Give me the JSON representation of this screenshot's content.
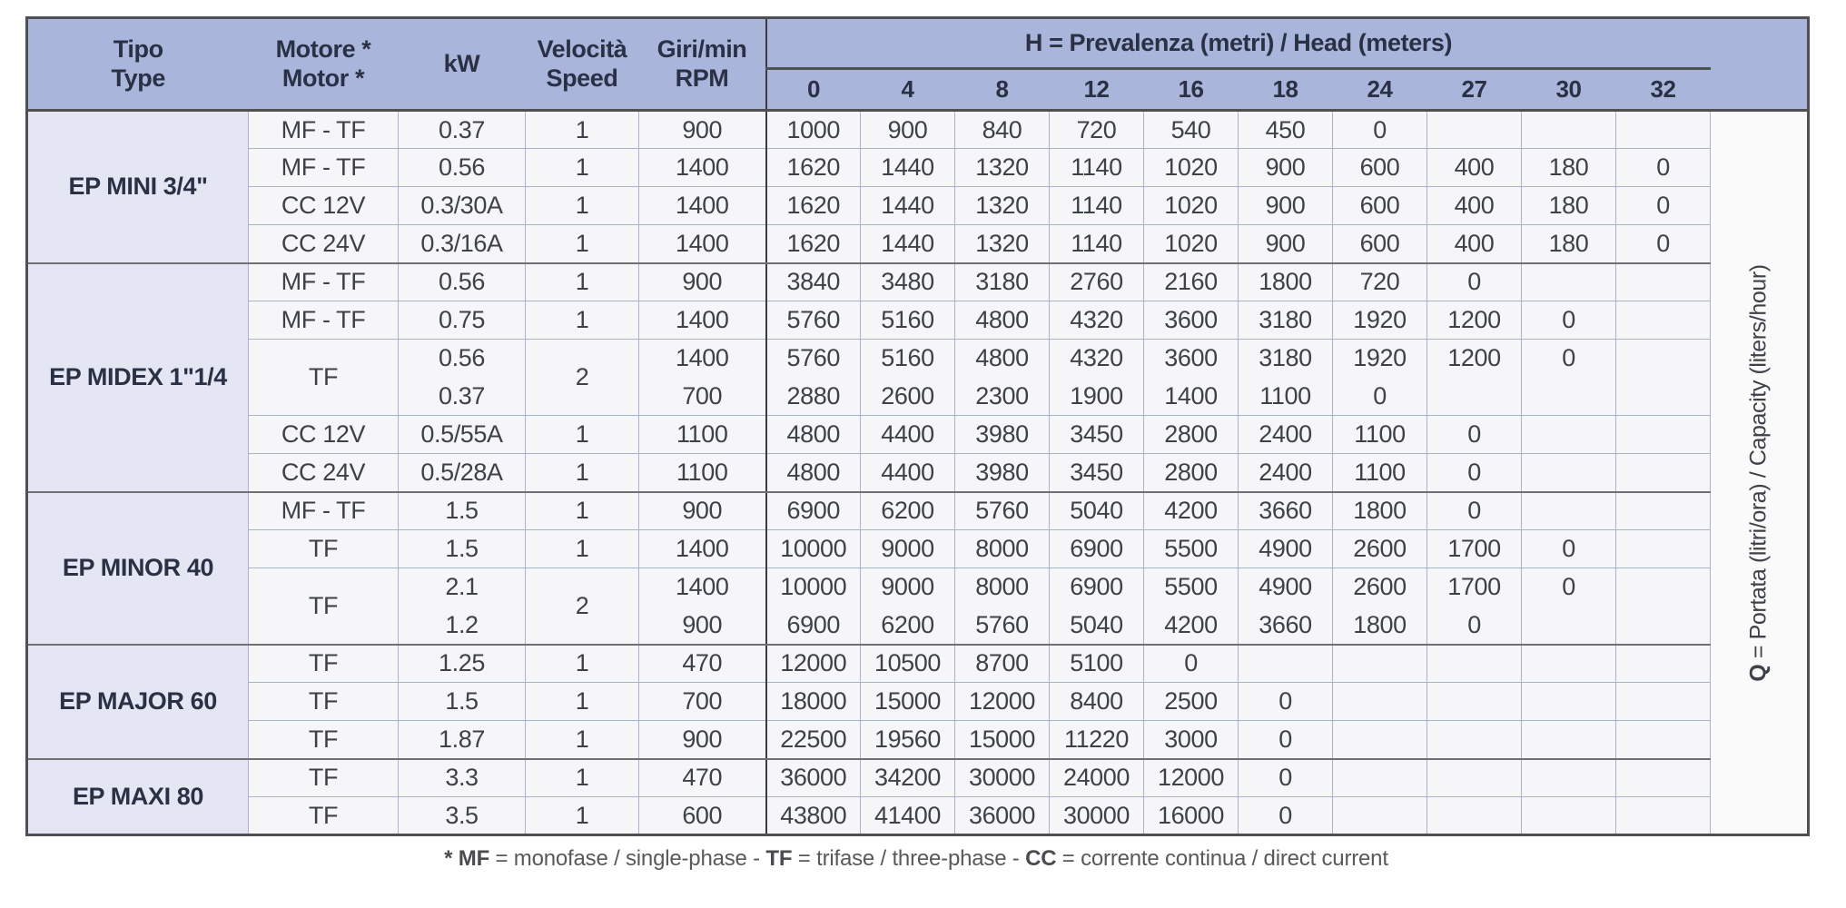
{
  "colors": {
    "header_bg": "#a9b5db",
    "type_col_bg": "#e4e7f3",
    "cell_bg": "#f6f6f9",
    "thin_border": "#aab3cb",
    "group_border": "#6f7074",
    "outer_border": "#4f5054",
    "dark_divider": "#3b3c40",
    "header_text": "#2a3145",
    "body_text": "#3d4148"
  },
  "table": {
    "headers": {
      "tipo_it": "Tipo",
      "tipo_en": "Type",
      "motore_it": "Motore *",
      "motore_en": "Motor *",
      "kw": "kW",
      "velocita_it": "Velocità",
      "velocita_en": "Speed",
      "giri_it": "Giri/min",
      "giri_en": "RPM",
      "head_bold": "H",
      "head_rest": " = Prevalenza (metri) / Head (meters)",
      "head_cols": [
        "0",
        "4",
        "8",
        "12",
        "16",
        "18",
        "24",
        "27",
        "30",
        "32"
      ],
      "q_bold": "Q",
      "q_rest": " = Portata (litri/ora) / Capacity (liters/hour)"
    },
    "groups": [
      {
        "name": "EP MINI 3/4\"",
        "rows": [
          {
            "motor": "MF - TF",
            "kw": "0.37",
            "speed": "1",
            "rpm": "900",
            "values": [
              "1000",
              "900",
              "840",
              "720",
              "540",
              "450",
              "0",
              "",
              "",
              ""
            ]
          },
          {
            "motor": "MF - TF",
            "kw": "0.56",
            "speed": "1",
            "rpm": "1400",
            "values": [
              "1620",
              "1440",
              "1320",
              "1140",
              "1020",
              "900",
              "600",
              "400",
              "180",
              "0"
            ]
          },
          {
            "motor": "CC 12V",
            "kw": "0.3/30A",
            "speed": "1",
            "rpm": "1400",
            "values": [
              "1620",
              "1440",
              "1320",
              "1140",
              "1020",
              "900",
              "600",
              "400",
              "180",
              "0"
            ]
          },
          {
            "motor": "CC 24V",
            "kw": "0.3/16A",
            "speed": "1",
            "rpm": "1400",
            "values": [
              "1620",
              "1440",
              "1320",
              "1140",
              "1020",
              "900",
              "600",
              "400",
              "180",
              "0"
            ]
          }
        ]
      },
      {
        "name": "EP MIDEX 1\"1/4",
        "rows": [
          {
            "motor": "MF - TF",
            "kw": "0.56",
            "speed": "1",
            "rpm": "900",
            "values": [
              "3840",
              "3480",
              "3180",
              "2760",
              "2160",
              "1800",
              "720",
              "0",
              "",
              ""
            ]
          },
          {
            "motor": "MF - TF",
            "kw": "0.75",
            "speed": "1",
            "rpm": "1400",
            "values": [
              "5760",
              "5160",
              "4800",
              "4320",
              "3600",
              "3180",
              "1920",
              "1200",
              "0",
              ""
            ]
          },
          {
            "motor": "TF",
            "motor_span": 2,
            "kw": "0.56",
            "speed": "2",
            "speed_span": 2,
            "rpm": "1400",
            "no_divider_below": true,
            "values": [
              "5760",
              "5160",
              "4800",
              "4320",
              "3600",
              "3180",
              "1920",
              "1200",
              "0",
              ""
            ]
          },
          {
            "merged": true,
            "kw": "0.37",
            "rpm": "700",
            "values": [
              "2880",
              "2600",
              "2300",
              "1900",
              "1400",
              "1100",
              "0",
              "",
              "",
              ""
            ]
          },
          {
            "motor": "CC 12V",
            "kw": "0.5/55A",
            "speed": "1",
            "rpm": "1100",
            "values": [
              "4800",
              "4400",
              "3980",
              "3450",
              "2800",
              "2400",
              "1100",
              "0",
              "",
              ""
            ]
          },
          {
            "motor": "CC 24V",
            "kw": "0.5/28A",
            "speed": "1",
            "rpm": "1100",
            "values": [
              "4800",
              "4400",
              "3980",
              "3450",
              "2800",
              "2400",
              "1100",
              "0",
              "",
              ""
            ]
          }
        ]
      },
      {
        "name": "EP MINOR 40",
        "rows": [
          {
            "motor": "MF - TF",
            "kw": "1.5",
            "speed": "1",
            "rpm": "900",
            "values": [
              "6900",
              "6200",
              "5760",
              "5040",
              "4200",
              "3660",
              "1800",
              "0",
              "",
              ""
            ]
          },
          {
            "motor": "TF",
            "kw": "1.5",
            "speed": "1",
            "rpm": "1400",
            "values": [
              "10000",
              "9000",
              "8000",
              "6900",
              "5500",
              "4900",
              "2600",
              "1700",
              "0",
              ""
            ]
          },
          {
            "motor": "TF",
            "motor_span": 2,
            "kw": "2.1",
            "speed": "2",
            "speed_span": 2,
            "rpm": "1400",
            "no_divider_below": true,
            "values": [
              "10000",
              "9000",
              "8000",
              "6900",
              "5500",
              "4900",
              "2600",
              "1700",
              "0",
              ""
            ]
          },
          {
            "merged": true,
            "kw": "1.2",
            "rpm": "900",
            "values": [
              "6900",
              "6200",
              "5760",
              "5040",
              "4200",
              "3660",
              "1800",
              "0",
              "",
              ""
            ]
          }
        ]
      },
      {
        "name": "EP MAJOR 60",
        "rows": [
          {
            "motor": "TF",
            "kw": "1.25",
            "speed": "1",
            "rpm": "470",
            "values": [
              "12000",
              "10500",
              "8700",
              "5100",
              "0",
              "",
              "",
              "",
              "",
              ""
            ]
          },
          {
            "motor": "TF",
            "kw": "1.5",
            "speed": "1",
            "rpm": "700",
            "values": [
              "18000",
              "15000",
              "12000",
              "8400",
              "2500",
              "0",
              "",
              "",
              "",
              ""
            ]
          },
          {
            "motor": "TF",
            "kw": "1.87",
            "speed": "1",
            "rpm": "900",
            "values": [
              "22500",
              "19560",
              "15000",
              "11220",
              "3000",
              "0",
              "",
              "",
              "",
              ""
            ]
          }
        ]
      },
      {
        "name": "EP MAXI 80",
        "rows": [
          {
            "motor": "TF",
            "kw": "3.3",
            "speed": "1",
            "rpm": "470",
            "values": [
              "36000",
              "34200",
              "30000",
              "24000",
              "12000",
              "0",
              "",
              "",
              "",
              ""
            ]
          },
          {
            "motor": "TF",
            "kw": "3.5",
            "speed": "1",
            "rpm": "600",
            "values": [
              "43800",
              "41400",
              "36000",
              "30000",
              "16000",
              "0",
              "",
              "",
              "",
              ""
            ]
          }
        ]
      }
    ],
    "footnote_segments": [
      {
        "text": "* MF",
        "bold": true
      },
      {
        "text": " = monofase / single-phase - ",
        "bold": false
      },
      {
        "text": "TF",
        "bold": true
      },
      {
        "text": " = trifase / three-phase - ",
        "bold": false
      },
      {
        "text": "CC",
        "bold": true
      },
      {
        "text": " = corrente continua / direct current",
        "bold": false
      }
    ]
  }
}
